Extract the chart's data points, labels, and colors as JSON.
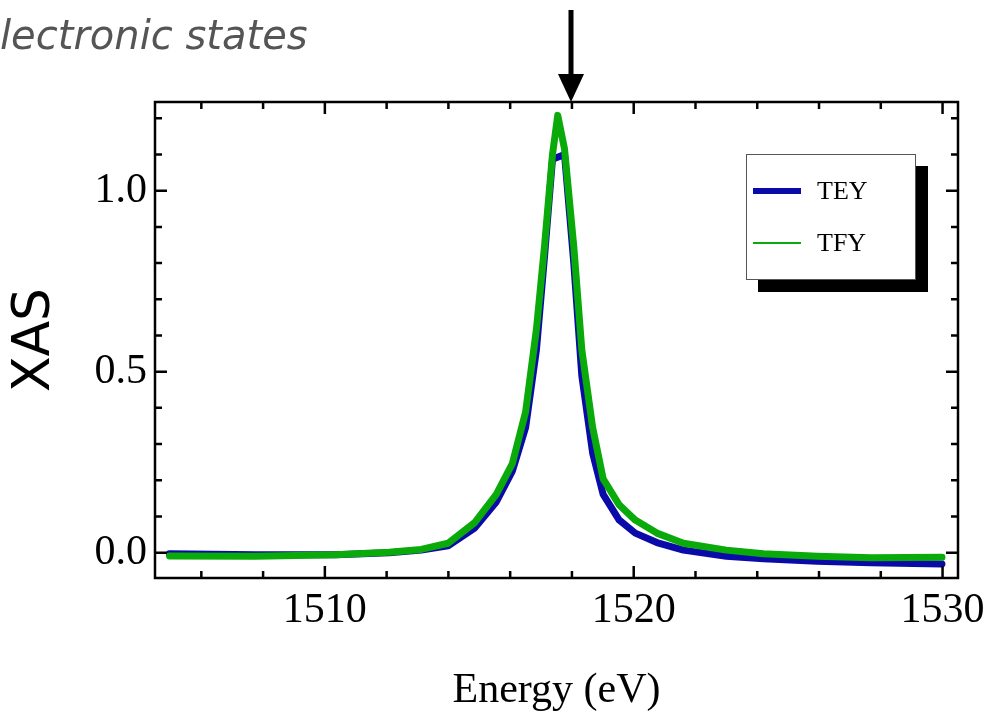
{
  "chart_data": {
    "type": "line",
    "title": "lectronic states",
    "xlabel": "Energy (eV)",
    "ylabel": "XAS",
    "x": [
      1504.97,
      1507.75,
      1510.35,
      1512.08,
      1513.12,
      1513.99,
      1514.85,
      1515.55,
      1516.07,
      1516.5,
      1516.85,
      1517.11,
      1517.37,
      1517.54,
      1517.76,
      1518.06,
      1518.32,
      1518.67,
      1519.01,
      1519.53,
      1520.05,
      1520.75,
      1521.61,
      1523.0,
      1524.2,
      1525.94,
      1527.68,
      1529.98
    ],
    "series": [
      {
        "name": "TEY",
        "color": "#0a0aa8",
        "values": [
          -0.003,
          -0.006,
          -0.006,
          0.0,
          0.007,
          0.019,
          0.068,
          0.14,
          0.225,
          0.346,
          0.56,
          0.816,
          1.087,
          null,
          1.1,
          0.8,
          0.489,
          0.275,
          0.161,
          0.09,
          0.054,
          0.028,
          0.007,
          -0.01,
          -0.017,
          -0.024,
          -0.028,
          -0.031
        ]
      },
      {
        "name": "TFY",
        "color": "#0aaa0a",
        "values": [
          -0.009,
          -0.01,
          -0.006,
          0.001,
          0.009,
          0.026,
          0.083,
          0.161,
          0.246,
          0.389,
          0.617,
          0.845,
          1.1,
          1.208,
          1.115,
          0.845,
          0.56,
          0.346,
          0.204,
          0.132,
          0.09,
          0.054,
          0.026,
          0.007,
          -0.003,
          -0.01,
          -0.014,
          -0.013
        ]
      }
    ],
    "xlim": [
      1504.5,
      1530.5
    ],
    "xticks": [
      {
        "value": 1506,
        "label": null
      },
      {
        "value": 1508,
        "label": null
      },
      1510,
      {
        "value": 1512,
        "label": null
      },
      {
        "value": 1514,
        "label": null
      },
      {
        "value": 1516,
        "label": null
      },
      {
        "value": 1518,
        "label": null
      },
      1520,
      {
        "value": 1522,
        "label": null
      },
      {
        "value": 1524,
        "label": null
      },
      {
        "value": 1526,
        "label": null
      },
      {
        "value": 1528,
        "label": null
      },
      1530
    ],
    "ylim": [
      -0.07,
      1.245
    ],
    "yticks": [
      {
        "value": 0,
        "label": "0.0"
      },
      {
        "value": 0.1,
        "label": null
      },
      {
        "value": 0.2,
        "label": null
      },
      {
        "value": 0.3,
        "label": null
      },
      {
        "value": 0.4,
        "label": null
      },
      {
        "value": 0.5,
        "label": "0.5"
      },
      {
        "value": 0.6,
        "label": null
      },
      {
        "value": 0.7,
        "label": null
      },
      {
        "value": 0.8,
        "label": null
      },
      {
        "value": 0.9,
        "label": null
      },
      {
        "value": 1.0,
        "label": "1.0"
      },
      {
        "value": 1.1,
        "label": null
      },
      {
        "value": 1.2,
        "label": null
      }
    ],
    "legend": "top right",
    "marker": "none",
    "line_style": "solid"
  }
}
